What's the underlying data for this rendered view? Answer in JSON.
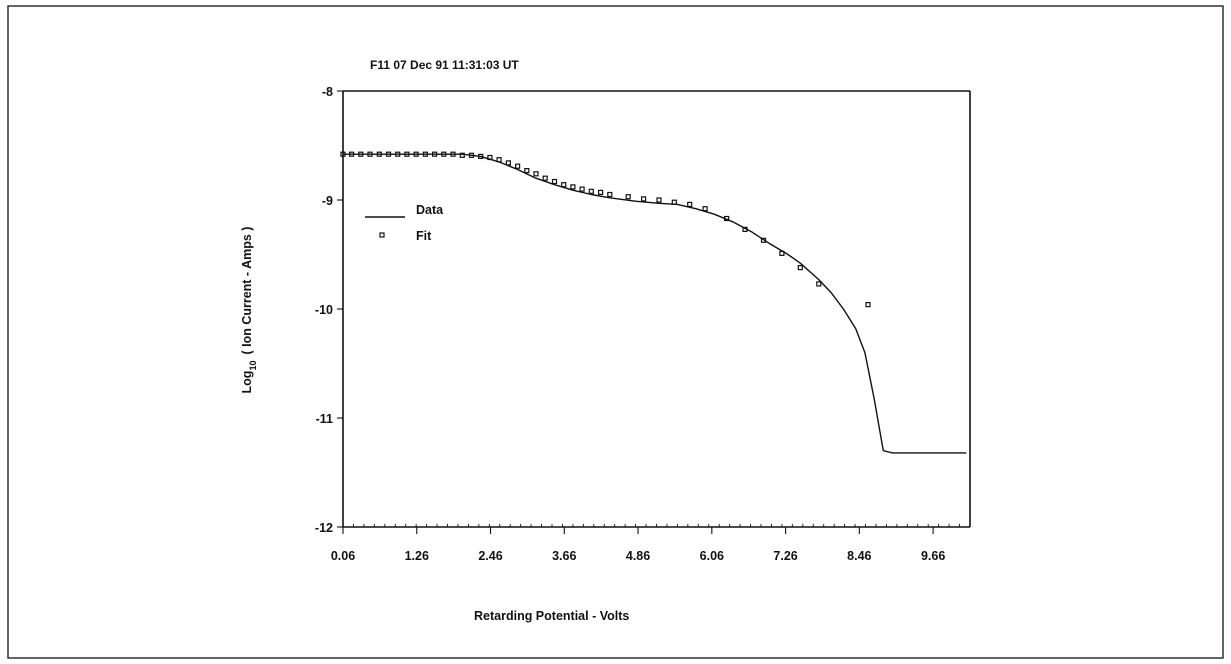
{
  "chart_data": {
    "type": "line",
    "title": "F11  07 Dec 91  11:31:03 UT",
    "xlabel": "Retarding Potential  -  Volts",
    "ylabel_prefix": "Log",
    "ylabel_subscript": "10",
    "ylabel_suffix": "( Ion Current - Amps )",
    "xlim": [
      0.06,
      10.26
    ],
    "ylim": [
      -12,
      -8
    ],
    "x_ticks": [
      0.06,
      1.26,
      2.46,
      3.66,
      4.86,
      6.06,
      7.26,
      8.46,
      9.66
    ],
    "x_tick_labels": [
      "0.06",
      "1.26",
      "2.46",
      "3.66",
      "4.86",
      "6.06",
      "7.26",
      "8.46",
      "9.66"
    ],
    "y_ticks": [
      -8,
      -9,
      -10,
      -11,
      -12
    ],
    "y_tick_labels": [
      "-8",
      "-9",
      "-10",
      "-11",
      "-12"
    ],
    "legend_position": "left",
    "grid": false,
    "series": [
      {
        "name": "Data",
        "style": "line",
        "x": [
          0.06,
          0.5,
          1.0,
          1.5,
          2.0,
          2.3,
          2.6,
          2.9,
          3.2,
          3.5,
          3.8,
          4.1,
          4.4,
          4.8,
          5.2,
          5.5,
          5.8,
          6.1,
          6.4,
          6.7,
          7.0,
          7.3,
          7.5,
          7.8,
          8.0,
          8.2,
          8.4,
          8.55,
          8.7,
          8.85,
          9.0,
          9.5,
          10.2
        ],
        "y": [
          -8.58,
          -8.58,
          -8.58,
          -8.58,
          -8.58,
          -8.6,
          -8.65,
          -8.72,
          -8.8,
          -8.86,
          -8.91,
          -8.95,
          -8.98,
          -9.01,
          -9.03,
          -9.04,
          -9.08,
          -9.13,
          -9.2,
          -9.29,
          -9.4,
          -9.5,
          -9.58,
          -9.73,
          -9.85,
          -10.0,
          -10.18,
          -10.4,
          -10.82,
          -11.3,
          -11.32,
          -11.32,
          -11.32
        ]
      },
      {
        "name": "Fit",
        "style": "markers",
        "x": [
          0.06,
          0.2,
          0.35,
          0.5,
          0.65,
          0.8,
          0.95,
          1.1,
          1.25,
          1.4,
          1.55,
          1.7,
          1.85,
          2.0,
          2.15,
          2.3,
          2.45,
          2.6,
          2.75,
          2.9,
          3.05,
          3.2,
          3.35,
          3.5,
          3.65,
          3.8,
          3.95,
          4.1,
          4.25,
          4.4,
          4.7,
          4.95,
          5.2,
          5.45,
          5.7,
          5.95,
          6.3,
          6.6,
          6.9,
          7.2,
          7.5,
          7.8,
          8.6
        ],
        "y": [
          -8.58,
          -8.58,
          -8.58,
          -8.58,
          -8.58,
          -8.58,
          -8.58,
          -8.58,
          -8.58,
          -8.58,
          -8.58,
          -8.58,
          -8.58,
          -8.59,
          -8.59,
          -8.6,
          -8.61,
          -8.63,
          -8.66,
          -8.69,
          -8.73,
          -8.76,
          -8.8,
          -8.83,
          -8.86,
          -8.88,
          -8.9,
          -8.92,
          -8.93,
          -8.95,
          -8.97,
          -8.99,
          -9.0,
          -9.02,
          -9.04,
          -9.08,
          -9.17,
          -9.27,
          -9.37,
          -9.49,
          -9.62,
          -9.77,
          -9.96
        ]
      }
    ]
  }
}
